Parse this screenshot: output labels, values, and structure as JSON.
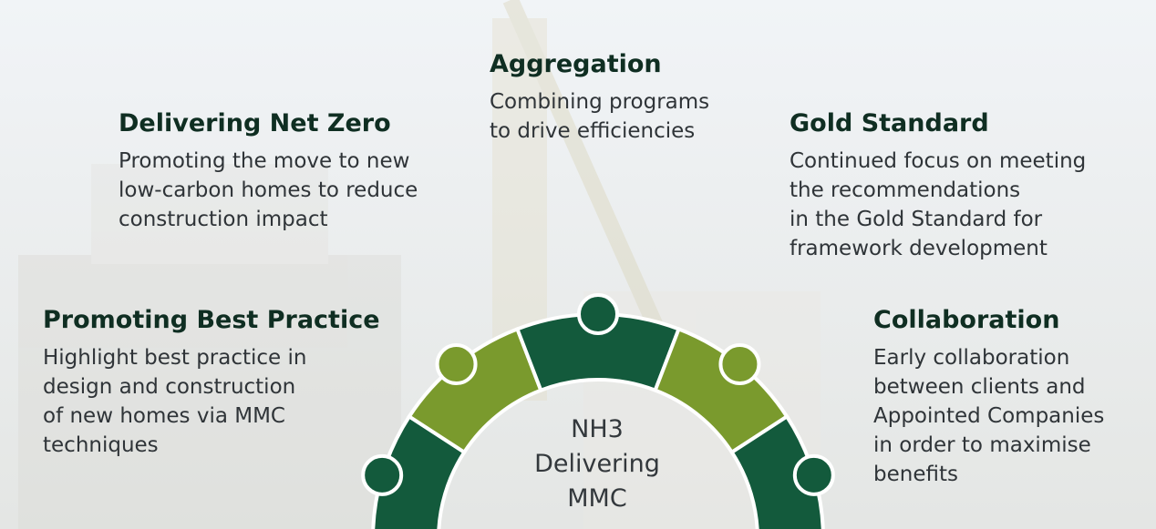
{
  "center_label": [
    "NH3",
    "Delivering",
    "MMC"
  ],
  "sections": [
    {
      "title": "Promoting Best Practice",
      "lines": [
        "Highlight best practice in",
        "design and construction",
        "of new homes via MMC",
        "techniques"
      ]
    },
    {
      "title": "Delivering Net Zero",
      "lines": [
        "Promoting the move to new",
        "low-carbon homes to reduce",
        "construction impact"
      ]
    },
    {
      "title": "Aggregation",
      "lines": [
        "Combining programs",
        "to drive efficiencies"
      ]
    },
    {
      "title": "Gold Standard",
      "lines": [
        "Continued focus on meeting",
        "the recommendations",
        "in the Gold Standard for",
        "framework development"
      ]
    },
    {
      "title": "Collaboration",
      "lines": [
        "Early collaboration",
        "between clients and",
        "Appointed Companies",
        "in order to maximise",
        "benefits"
      ]
    }
  ]
}
